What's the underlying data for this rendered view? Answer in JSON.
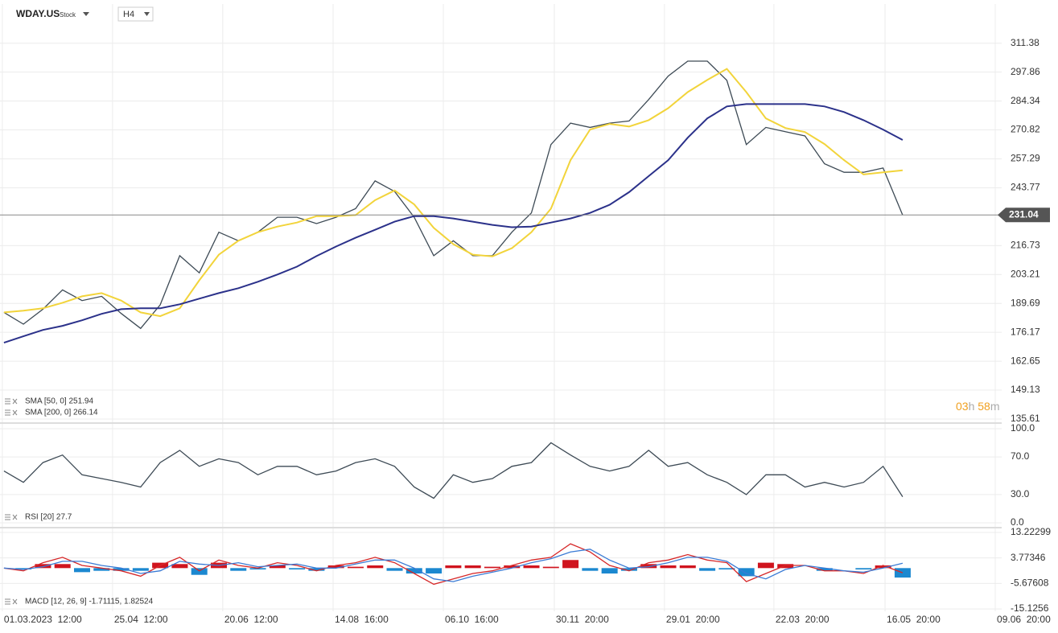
{
  "header": {
    "symbol": "WDAY.US",
    "kind": "Stock",
    "interval": "H4"
  },
  "countdown": [
    "03",
    "h",
    "58",
    "m"
  ],
  "chart_data": [
    {
      "type": "line",
      "ylim": [
        134.1,
        329.7
      ],
      "yticks": [
        311.38,
        297.86,
        284.34,
        270.82,
        257.29,
        243.77,
        216.73,
        203.21,
        189.69,
        176.17,
        162.65,
        149.13,
        135.61
      ],
      "grid": true,
      "price_line": 231.04,
      "legend": [
        "SMA [50, 0] 251.94",
        "SMA [200, 0] 266.14"
      ],
      "series": [
        {
          "name": "WDAY.US",
          "color": "#3d4a55",
          "values": [
            185.5,
            180,
            187,
            196,
            191,
            193,
            185,
            178,
            189,
            212,
            204,
            223,
            219,
            223,
            230,
            230,
            227,
            230,
            234,
            247,
            242,
            230,
            212,
            219,
            212,
            212,
            223,
            232,
            264,
            274,
            272,
            274,
            275,
            285,
            296,
            303,
            303,
            294,
            264,
            272,
            270,
            268,
            255,
            251,
            251,
            253,
            231
          ]
        },
        {
          "name": "SMA [50, 0]",
          "color": "#f2d43b",
          "values": [
            185.5,
            186.3,
            187.4,
            190,
            193,
            194.5,
            191,
            185.5,
            183.7,
            187.4,
            200.5,
            212.5,
            219,
            223,
            225.6,
            227.5,
            230.5,
            230.5,
            231,
            238,
            242.5,
            236,
            225,
            217.4,
            212.5,
            211.7,
            215.5,
            223,
            234,
            256.7,
            271,
            273.6,
            272.4,
            275.4,
            281,
            288.5,
            294.2,
            299.4,
            288.5,
            276.2,
            271.7,
            269.8,
            264.2,
            256.7,
            250,
            251,
            251.94
          ]
        },
        {
          "name": "SMA [200, 0]",
          "color": "#2b318a",
          "values": [
            171.3,
            174.3,
            177.3,
            179.2,
            181.8,
            184.8,
            187,
            187.4,
            187.4,
            189.3,
            191.9,
            194.5,
            196.8,
            199.8,
            203.2,
            206.9,
            211.8,
            216.3,
            220.4,
            224.1,
            227.9,
            230.5,
            230.5,
            229.4,
            227.9,
            226.4,
            225.3,
            225.6,
            227.5,
            229.4,
            232,
            235.8,
            241.7,
            249.2,
            256.7,
            267.2,
            276.2,
            281.8,
            282.9,
            282.9,
            282.9,
            282.9,
            281.8,
            279.2,
            275.4,
            271,
            266.14
          ]
        }
      ]
    },
    {
      "type": "line",
      "ylim": [
        -4.3,
        105.1
      ],
      "yticks": [
        {
          "value": 100,
          "label": "100.0"
        },
        {
          "value": 70,
          "label": "70.0"
        },
        {
          "value": 30,
          "label": "30.0"
        },
        {
          "value": 0,
          "label": "0.0"
        }
      ],
      "grid": true,
      "legend": [
        "RSI [20] 27.7"
      ],
      "series": [
        {
          "name": "RSI [20]",
          "color": "#3d4a55",
          "values": [
            55,
            43,
            64,
            72,
            51,
            47,
            43,
            38,
            64,
            77,
            60,
            68,
            64,
            51,
            60,
            60,
            51,
            55,
            64,
            68,
            60,
            38,
            26,
            51,
            43,
            47,
            60,
            64,
            85,
            72,
            60,
            55,
            60,
            77,
            60,
            64,
            51,
            43,
            30,
            51,
            51,
            38,
            43,
            38,
            43,
            60,
            27.7
          ]
        }
      ]
    },
    {
      "type": "combo",
      "ylim": [
        -16,
        14.7
      ],
      "yticks": [
        {
          "value": 13.22299,
          "label": "13.22299"
        },
        {
          "value": 3.77346,
          "label": "3.77346"
        },
        {
          "value": -5.67608,
          "label": "-5.67608"
        },
        -15.1256
      ],
      "grid": true,
      "legend": [
        "MACD [12, 26, 9] -1.71115, 1.82524"
      ],
      "xlim": [
        -0.2,
        52.51
      ],
      "xticks": [
        {
          "value": -0.08,
          "label": "01.03.2023  12:00"
        },
        {
          "value": 5.56,
          "label": "25.04  12:00"
        },
        {
          "value": 11.2,
          "label": "20.06  12:00"
        },
        {
          "value": 16.85,
          "label": "14.08  16:00"
        },
        {
          "value": 22.49,
          "label": "06.10  16:00"
        },
        {
          "value": 28.17,
          "label": "30.11  20:00"
        },
        {
          "value": 33.81,
          "label": "29.01  20:00"
        },
        {
          "value": 39.41,
          "label": "22.03  20:00"
        },
        {
          "value": 45.1,
          "label": "16.05  20:00"
        },
        {
          "value": 50.74,
          "label": "09.06  20:00"
        }
      ],
      "series": [
        {
          "name": "Histogram",
          "style": "bars",
          "colors": {
            "up": "#d0141e",
            "down": "#1b88d0"
          },
          "values": [
            0,
            -0.5,
            1.5,
            1.5,
            -1.5,
            -1,
            -1,
            -1,
            2,
            1.5,
            -2.5,
            2,
            -1,
            -0.5,
            1,
            -0.5,
            -1,
            1,
            0.5,
            1,
            -1,
            -2,
            -2,
            1,
            1,
            0.5,
            1,
            1,
            0.5,
            3,
            -1,
            -2,
            -1,
            1.5,
            1,
            1,
            -1,
            -0.5,
            -3,
            2,
            1.5,
            0,
            -1,
            0,
            -0.5,
            1,
            -3.5
          ]
        },
        {
          "name": "MACD",
          "color": "#d62728",
          "values": [
            0,
            -1,
            2,
            4,
            1,
            0,
            -1,
            -3,
            1,
            4,
            -1,
            3,
            1,
            0,
            2,
            1,
            -1,
            1,
            2,
            4,
            2,
            -2,
            -6,
            -4,
            -2,
            -1,
            1,
            3,
            4,
            9,
            6,
            1,
            -1,
            2,
            3,
            5,
            3,
            2,
            -5,
            -2,
            1,
            1,
            -1,
            -1,
            -2,
            1,
            -1.71115
          ]
        },
        {
          "name": "Signal",
          "color": "#3a7bd5",
          "values": [
            0,
            -0.5,
            0.5,
            2.5,
            2.5,
            1,
            0,
            -2,
            -1,
            2.5,
            1.5,
            1,
            2,
            0.5,
            1,
            1.5,
            0,
            0,
            1.5,
            3,
            3,
            0,
            -4,
            -5,
            -3,
            -1.5,
            0,
            2,
            3.5,
            6,
            7,
            3,
            0,
            0.5,
            2,
            4,
            4,
            2.5,
            -2,
            -4,
            -0.5,
            1,
            0,
            -1,
            -1.5,
            0,
            1.82524
          ]
        }
      ]
    }
  ]
}
